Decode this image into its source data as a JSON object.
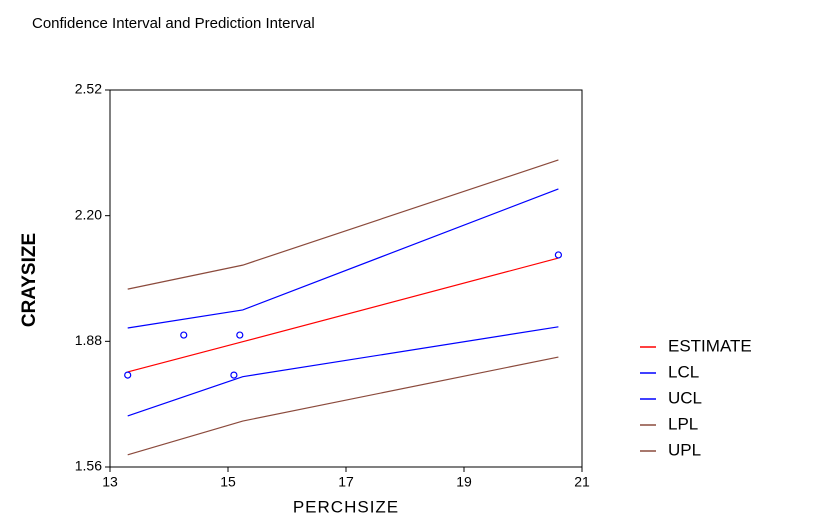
{
  "chart_data": {
    "type": "line",
    "title": "Confidence Interval and Prediction Interval",
    "x_label": "PERCHSIZE",
    "y_label": "CRAYSIZE",
    "x": [
      13.3,
      15.25,
      20.6
    ],
    "series": [
      {
        "name": "ESTIMATE",
        "color": "#ff0000",
        "values": [
          1.802,
          1.879,
          2.092
        ]
      },
      {
        "name": "LCL",
        "color": "#0000ff",
        "values": [
          1.69,
          1.79,
          1.917
        ]
      },
      {
        "name": "UCL",
        "color": "#0000ff",
        "values": [
          1.914,
          1.96,
          2.268
        ]
      },
      {
        "name": "LPL",
        "color": "#8b4a3c",
        "values": [
          1.591,
          1.677,
          1.84
        ]
      },
      {
        "name": "UPL",
        "color": "#8b4a3c",
        "values": [
          2.013,
          2.074,
          2.342
        ]
      }
    ],
    "points": {
      "color": "#0000ff",
      "x": [
        13.3,
        14.25,
        15.2,
        15.1,
        20.6
      ],
      "y": [
        1.794,
        1.896,
        1.896,
        1.794,
        2.1
      ]
    },
    "xlim": [
      13,
      21
    ],
    "xticks": [
      13,
      15,
      17,
      19,
      21
    ],
    "ylim": [
      1.56,
      2.52
    ],
    "yticks": [
      1.56,
      1.88,
      {
        "value": 2.2,
        "label": "2.20"
      },
      2.52
    ],
    "legend": "right"
  }
}
